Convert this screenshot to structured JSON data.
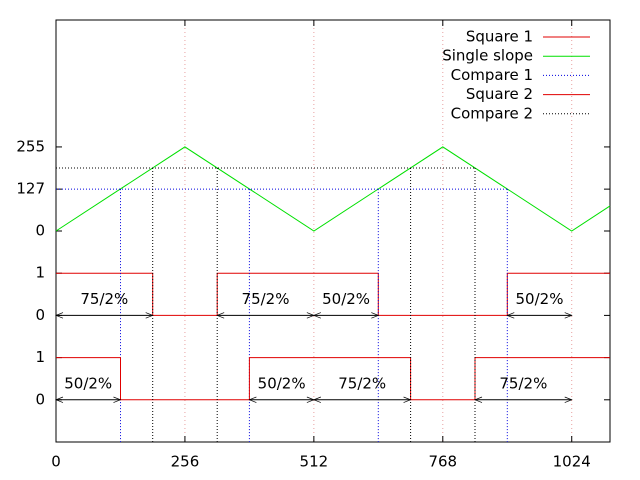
{
  "chart_data": {
    "type": "line",
    "xlim": [
      0,
      1100
    ],
    "xticks": [
      0,
      256,
      512,
      768,
      1024
    ],
    "ylim": [
      -640,
      640
    ],
    "yticks": [
      255,
      127,
      0,
      {
        "value": -128,
        "label": "1"
      },
      {
        "value": -256,
        "label": "0"
      },
      {
        "value": -384,
        "label": "1"
      },
      {
        "value": -512,
        "label": "0"
      }
    ],
    "grid": "x",
    "grid_color": "#e8a0a0",
    "legend": "top-right",
    "series": [
      {
        "name": "Square 1",
        "color": "#e00000",
        "line_style": "solid",
        "x": [
          0,
          192,
          192,
          320,
          320,
          640,
          640,
          896,
          896,
          1100
        ],
        "values": [
          -128,
          -128,
          -256,
          -256,
          -128,
          -128,
          -256,
          -256,
          -128,
          -128
        ]
      },
      {
        "name": "Single slope",
        "color": "#00e000",
        "line_style": "solid",
        "x": [
          0,
          256,
          512,
          768,
          1024,
          1100
        ],
        "values": [
          0,
          255,
          0,
          255,
          0,
          76
        ]
      },
      {
        "name": "Compare 1",
        "color": "#0000e0",
        "line_style": "dotted",
        "x": [
          0,
          896,
          null,
          128,
          128,
          null,
          384,
          384,
          null,
          640,
          640,
          null,
          896,
          896
        ],
        "values": [
          127,
          127,
          null,
          127,
          -640,
          null,
          127,
          -640,
          null,
          127,
          -640,
          null,
          127,
          -640
        ]
      },
      {
        "name": "Square 2",
        "color": "#e00000",
        "line_style": "solid",
        "x": [
          0,
          128,
          128,
          384,
          384,
          704,
          704,
          832,
          832,
          1100
        ],
        "values": [
          -384,
          -384,
          -512,
          -512,
          -384,
          -384,
          -512,
          -512,
          -384,
          -384
        ]
      },
      {
        "name": "Compare 2",
        "color": "#000000",
        "line_style": "dotted",
        "x": [
          0,
          832,
          null,
          192,
          192,
          null,
          320,
          320,
          null,
          704,
          704,
          null,
          832,
          832
        ],
        "values": [
          191,
          191,
          null,
          191,
          -640,
          null,
          191,
          -640,
          null,
          191,
          -640,
          null,
          191,
          -640
        ]
      }
    ],
    "annotations": [
      {
        "text": "75/2%",
        "x": [
          0,
          192
        ],
        "y": -256
      },
      {
        "text": "75/2%",
        "x": [
          320,
          512
        ],
        "y": -256
      },
      {
        "text": "50/2%",
        "x": [
          512,
          640
        ],
        "y": -256
      },
      {
        "text": "50/2%",
        "x": [
          896,
          1024
        ],
        "y": -256
      },
      {
        "text": "50/2%",
        "x": [
          0,
          128
        ],
        "y": -512
      },
      {
        "text": "50/2%",
        "x": [
          384,
          512
        ],
        "y": -512
      },
      {
        "text": "75/2%",
        "x": [
          512,
          704
        ],
        "y": -512
      },
      {
        "text": "75/2%",
        "x": [
          832,
          1024
        ],
        "y": -512
      }
    ]
  }
}
